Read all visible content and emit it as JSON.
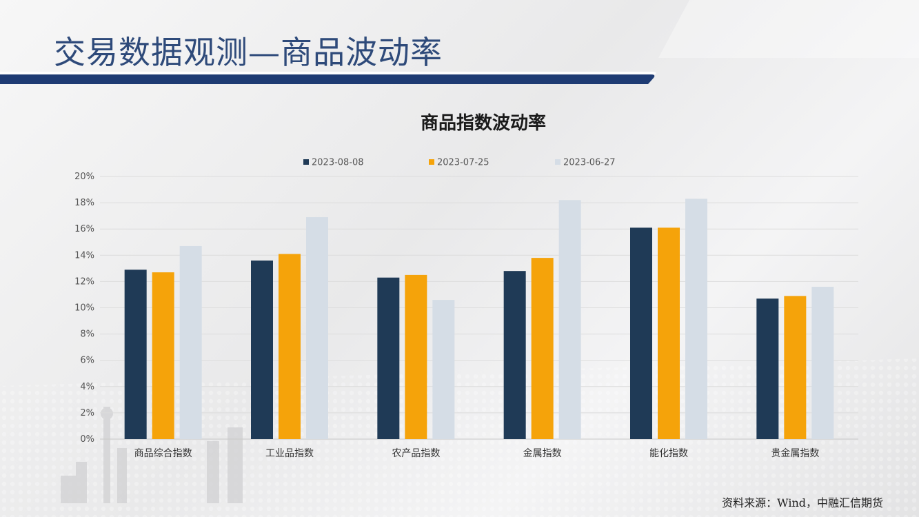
{
  "slide": {
    "title": "交易数据观测—商品波动率",
    "source": "资料来源：Wind，中融汇信期货"
  },
  "colors": {
    "header_band": "#1e3b73",
    "series": [
      "#1f3a56",
      "#f5a30a",
      "#d5dde6"
    ]
  },
  "chart_data": {
    "type": "bar",
    "title": "商品指数波动率",
    "categories": [
      "商品综合指数",
      "工业品指数",
      "农产品指数",
      "金属指数",
      "能化指数",
      "贵金属指数"
    ],
    "series": [
      {
        "name": "2023-08-08",
        "values": [
          12.9,
          13.6,
          12.3,
          12.8,
          16.1,
          10.7
        ]
      },
      {
        "name": "2023-07-25",
        "values": [
          12.7,
          14.1,
          12.5,
          13.8,
          16.1,
          10.9
        ]
      },
      {
        "name": "2023-06-27",
        "values": [
          14.7,
          16.9,
          10.6,
          18.2,
          18.3,
          11.6
        ]
      }
    ],
    "ylim": [
      0,
      20
    ],
    "yticks": [
      "0%",
      "2%",
      "4%",
      "6%",
      "8%",
      "10%",
      "12%",
      "14%",
      "16%",
      "18%",
      "20%"
    ],
    "grid": true,
    "legend": "top"
  }
}
